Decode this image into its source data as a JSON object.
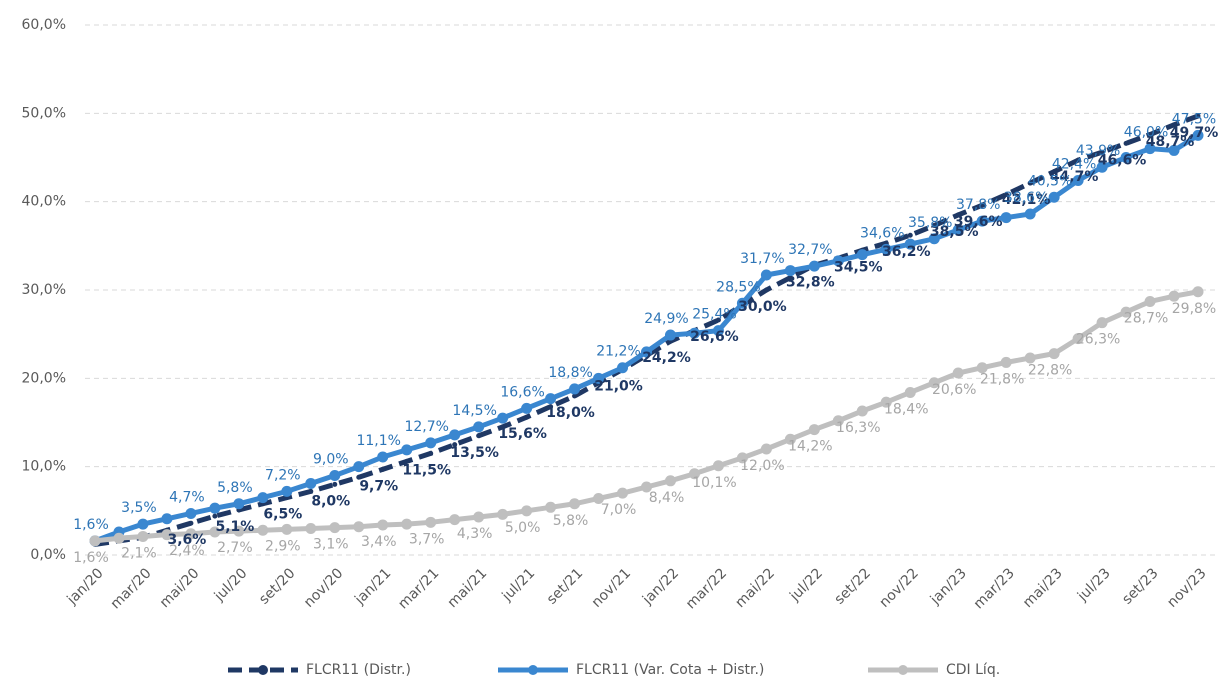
{
  "chart_data": {
    "type": "line",
    "categories": [
      "jan/20",
      null,
      "mar/20",
      null,
      "mai/20",
      null,
      "jul/20",
      null,
      "set/20",
      null,
      "nov/20",
      null,
      "jan/21",
      null,
      "mar/21",
      null,
      "mai/21",
      null,
      "jul/21",
      null,
      "set/21",
      null,
      "nov/21",
      null,
      "jan/22",
      null,
      "mar/22",
      null,
      "mai/22",
      null,
      "jul/22",
      null,
      "set/22",
      null,
      "nov/22",
      null,
      "jan/23",
      null,
      "mar/23",
      null,
      "mai/23",
      null,
      "jul/23",
      null,
      "set/23",
      null,
      "nov/23"
    ],
    "ylim": [
      0,
      60
    ],
    "yticks": [
      {
        "value": 0,
        "label": "0,0%"
      },
      {
        "value": 10,
        "label": "10,0%"
      },
      {
        "value": 20,
        "label": "20,0%"
      },
      {
        "value": 30,
        "label": "30,0%"
      },
      {
        "value": 40,
        "label": "40,0%"
      },
      {
        "value": 50,
        "label": "50,0%"
      },
      {
        "value": 60,
        "label": "60,0%"
      }
    ],
    "grid": true,
    "legend": "bottom",
    "series": [
      {
        "name": "FLCR11 (Distr.)",
        "color": "#1f3864",
        "line_style": "dashed",
        "label_position": "below",
        "values": [
          1.2,
          1.6,
          2.0,
          2.8,
          3.6,
          4.4,
          5.1,
          5.8,
          6.5,
          7.2,
          8.0,
          8.8,
          9.7,
          10.6,
          11.5,
          12.5,
          13.5,
          14.5,
          15.6,
          16.8,
          18.0,
          19.5,
          21.0,
          22.6,
          24.2,
          25.4,
          26.6,
          28.3,
          30.0,
          31.4,
          32.8,
          33.6,
          34.5,
          35.3,
          36.2,
          37.3,
          38.5,
          39.6,
          40.8,
          42.1,
          43.4,
          44.7,
          45.6,
          46.6,
          47.6,
          48.7,
          49.7
        ],
        "value_labels": [
          null,
          null,
          null,
          null,
          "3,6%",
          null,
          "5,1%",
          null,
          "6,5%",
          null,
          "8,0%",
          null,
          "9,7%",
          null,
          "11,5%",
          null,
          "13,5%",
          null,
          "15,6%",
          null,
          "18,0%",
          null,
          "21,0%",
          null,
          "24,2%",
          null,
          "26,6%",
          null,
          "30,0%",
          null,
          "32,8%",
          null,
          "34,5%",
          null,
          "36,2%",
          null,
          "38,5%",
          "39,6%",
          null,
          "42,1%",
          null,
          "44,7%",
          null,
          "46,6%",
          null,
          "48,7%",
          "49,7%"
        ]
      },
      {
        "name": "FLCR11 (Var. Cota + Distr.)",
        "color": "#3a87d0",
        "line_style": "solid",
        "label_position": "above",
        "values": [
          1.6,
          2.6,
          3.5,
          4.1,
          4.7,
          5.3,
          5.8,
          6.5,
          7.2,
          8.1,
          9.0,
          10.0,
          11.1,
          11.9,
          12.7,
          13.6,
          14.5,
          15.5,
          16.6,
          17.7,
          18.8,
          20.0,
          21.2,
          23.0,
          24.9,
          25.1,
          25.4,
          28.5,
          31.7,
          32.2,
          32.7,
          33.3,
          34.0,
          34.6,
          35.2,
          35.8,
          36.8,
          37.8,
          38.2,
          38.6,
          40.5,
          42.4,
          43.9,
          45.0,
          46.0,
          45.8,
          47.5
        ],
        "value_labels": [
          "1,6%",
          null,
          "3,5%",
          null,
          "4,7%",
          null,
          "5,8%",
          null,
          "7,2%",
          null,
          "9,0%",
          null,
          "11,1%",
          null,
          "12,7%",
          null,
          "14,5%",
          null,
          "16,6%",
          null,
          "18,8%",
          null,
          "21,2%",
          null,
          "24,9%",
          null,
          "25,4%",
          "28,5%",
          "31,7%",
          null,
          "32,7%",
          null,
          null,
          "34,6%",
          null,
          "35,8%",
          null,
          "37,8%",
          null,
          "38,6%",
          "40,5%",
          "42,4%",
          "43,9%",
          null,
          "46,0%",
          null,
          "47,5%"
        ]
      },
      {
        "name": "CDI Líq.",
        "color": "#bfbfbf",
        "line_style": "solid",
        "label_position": "below",
        "values": [
          1.6,
          1.9,
          2.1,
          2.3,
          2.4,
          2.6,
          2.7,
          2.8,
          2.9,
          3.0,
          3.1,
          3.2,
          3.4,
          3.5,
          3.7,
          4.0,
          4.3,
          4.6,
          5.0,
          5.4,
          5.8,
          6.4,
          7.0,
          7.7,
          8.4,
          9.2,
          10.1,
          11.0,
          12.0,
          13.1,
          14.2,
          15.2,
          16.3,
          17.3,
          18.4,
          19.5,
          20.6,
          21.2,
          21.8,
          22.3,
          22.8,
          24.5,
          26.3,
          27.5,
          28.7,
          29.3,
          29.8
        ],
        "value_labels": [
          "1,6%",
          null,
          "2,1%",
          null,
          "2,4%",
          null,
          "2,7%",
          null,
          "2,9%",
          null,
          "3,1%",
          null,
          "3,4%",
          null,
          "3,7%",
          null,
          "4,3%",
          null,
          "5,0%",
          null,
          "5,8%",
          null,
          "7,0%",
          null,
          "8,4%",
          null,
          "10,1%",
          null,
          "12,0%",
          null,
          "14,2%",
          null,
          "16,3%",
          null,
          "18,4%",
          null,
          "20,6%",
          null,
          "21,8%",
          null,
          "22,8%",
          null,
          "26,3%",
          null,
          "28,7%",
          null,
          "29,8%"
        ]
      }
    ]
  }
}
